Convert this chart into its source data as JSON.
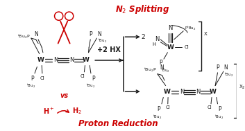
{
  "bg_color": "#ffffff",
  "red_color": "#cc0000",
  "black_color": "#1a1a1a",
  "title_top": "N$_2$ Splitting",
  "title_bottom": "Proton Reduction",
  "center_label": "+2 HX",
  "vs_label": "vs",
  "hplus_label": "H$^+$",
  "h2_label": "H$_2$",
  "figw": 3.53,
  "figh": 1.89,
  "dpi": 100
}
